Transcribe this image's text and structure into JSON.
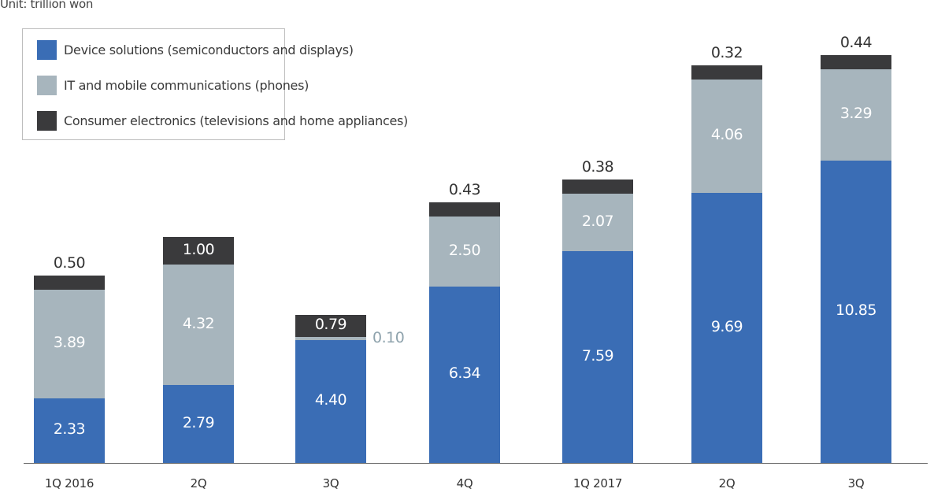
{
  "unit_label": "Unit: trillion won",
  "legend": [
    {
      "label": "Device solutions (semiconductors and displays)",
      "color": "#3a6db5"
    },
    {
      "label": "IT and mobile communications (phones)",
      "color": "#a7b5bd"
    },
    {
      "label": "Consumer electronics (televisions and home appliances)",
      "color": "#3a3a3c"
    }
  ],
  "chart_data": {
    "type": "bar",
    "stacked": true,
    "title": "",
    "unit": "trillion won",
    "xlabel": "",
    "ylabel": "",
    "categories": [
      "1Q 2016",
      "2Q",
      "3Q",
      "4Q",
      "1Q 2017",
      "2Q",
      "3Q"
    ],
    "series": [
      {
        "name": "Device solutions (semiconductors and displays)",
        "color": "#3a6db5",
        "values": [
          2.33,
          2.79,
          4.4,
          6.34,
          7.59,
          9.69,
          10.85
        ]
      },
      {
        "name": "IT and mobile communications (phones)",
        "color": "#a7b5bd",
        "values": [
          3.89,
          4.32,
          0.1,
          2.5,
          2.07,
          4.06,
          3.29
        ]
      },
      {
        "name": "Consumer electronics (televisions and home appliances)",
        "color": "#3a3a3c",
        "values": [
          0.5,
          1.0,
          0.79,
          0.43,
          0.38,
          0.32,
          0.44
        ]
      }
    ],
    "value_labels": {
      "device": [
        "2.33",
        "2.79",
        "4.40",
        "6.34",
        "7.59",
        "9.69",
        "10.85"
      ],
      "mobile": [
        "3.89",
        "4.32",
        "0.10",
        "2.50",
        "2.07",
        "4.06",
        "3.29"
      ],
      "consumer": [
        "0.50",
        "1.00",
        "0.79",
        "0.43",
        "0.38",
        "0.32",
        "0.44"
      ]
    },
    "grid": false,
    "legend_position": "top-left"
  }
}
